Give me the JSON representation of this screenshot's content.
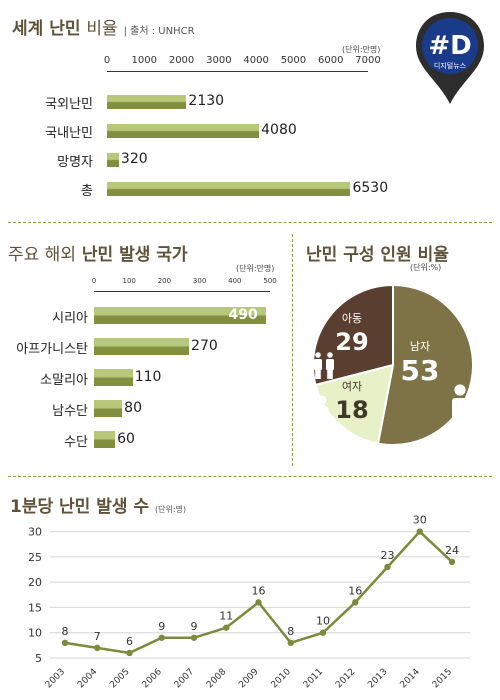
{
  "logo": {
    "text": "#D",
    "subtext": "디지털뉴스"
  },
  "world": {
    "title": "세계 난민",
    "title_light": "비율",
    "source": "| 출처 : UNHCR",
    "unit": "(단위:만명)"
  },
  "countries": {
    "title_light": "주요 해외",
    "title_bold": "난민 발생 국가",
    "unit": "(단위:만명)"
  },
  "composition": {
    "title": "난민 구성 인원 비율",
    "unit": "(단위:%)"
  },
  "perminute": {
    "title": "1분당 난민 발생 수",
    "unit": "(단위:명)"
  },
  "colors": {
    "bar_light": "#b8c87a",
    "bar_dark": "#828f3e",
    "title": "#5e5239",
    "pie_men": "#7d7347",
    "pie_children": "#5a3e30",
    "pie_women": "#e8f0c8",
    "line": "#7c8a3c",
    "logo": "#1a3a8a"
  },
  "chart_data": [
    {
      "type": "bar",
      "orientation": "horizontal",
      "categories": [
        "국외난민",
        "국내난민",
        "망명자",
        "총"
      ],
      "values": [
        2130,
        4080,
        320,
        6530
      ],
      "value_labels": [
        "2130",
        "4080",
        "320",
        "6530"
      ],
      "xticks": [
        "0",
        "1000",
        "2000",
        "3000",
        "4000",
        "5000",
        "6000",
        "7000"
      ],
      "xlim": [
        0,
        7000
      ]
    },
    {
      "type": "bar",
      "orientation": "horizontal",
      "categories": [
        "시리아",
        "아프가니스탄",
        "소말리아",
        "남수단",
        "수단"
      ],
      "values": [
        490,
        270,
        110,
        80,
        60
      ],
      "value_labels": [
        "490",
        "270",
        "110",
        "80",
        "60"
      ],
      "xticks": [
        "0",
        "100",
        "200",
        "300",
        "400",
        "500"
      ],
      "xlim": [
        0,
        500
      ]
    },
    {
      "type": "pie",
      "categories": [
        "남자",
        "아동",
        "여자"
      ],
      "values": [
        53,
        29,
        18
      ],
      "value_labels": [
        "53",
        "29",
        "18"
      ]
    },
    {
      "type": "line",
      "x": [
        "2003",
        "2004",
        "2005",
        "2006",
        "2007",
        "2008",
        "2009",
        "2010",
        "2011",
        "2012",
        "2013",
        "2014",
        "2015"
      ],
      "values": [
        8,
        7,
        6,
        9,
        9,
        11,
        16,
        8,
        10,
        16,
        23,
        30,
        24
      ],
      "value_labels": [
        "8",
        "7",
        "6",
        "9",
        "9",
        "11",
        "16",
        "8",
        "10",
        "16",
        "23",
        "30",
        "24"
      ],
      "yticks": [
        "5",
        "10",
        "15",
        "20",
        "25",
        "30"
      ],
      "ylim": [
        5,
        32
      ],
      "grid": true
    }
  ]
}
